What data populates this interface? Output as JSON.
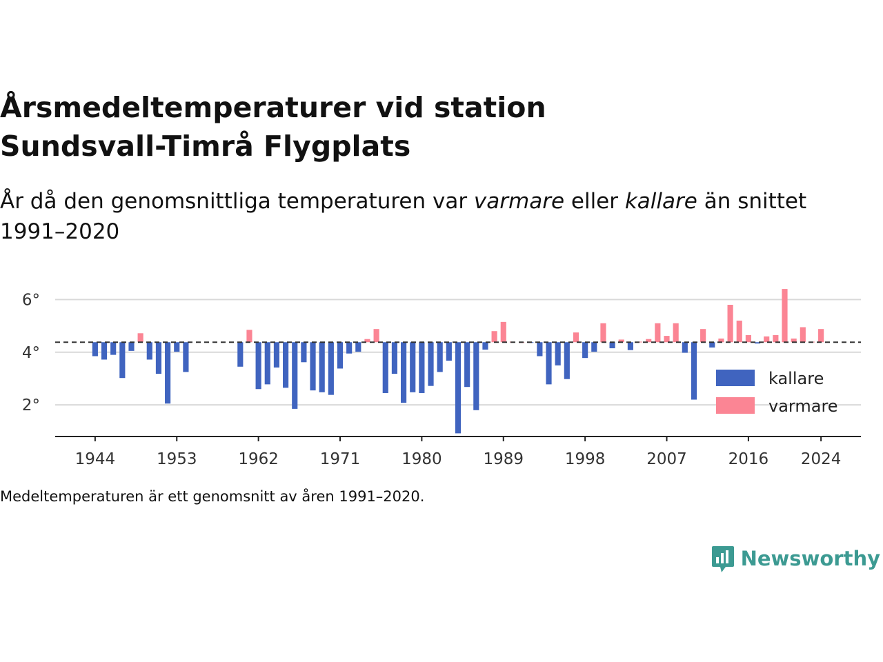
{
  "title": "Årsmedeltemperaturer vid station Sundsvall-Timrå Flygplats",
  "subtitle": {
    "part1": "År då den genomsnittliga temperaturen var ",
    "warm_word": "varmare",
    "part2": " eller ",
    "cold_word": "kallare",
    "part3": " än snittet 1991–2020"
  },
  "note": "Medeltemperaturen är ett genomsnitt av åren 1991–2020.",
  "brand": "Newsworthy",
  "colors": {
    "colder": "#4064bf",
    "warmer": "#fb8594",
    "accent": "#3c9a92"
  },
  "chart_data": {
    "type": "bar",
    "baseline": 4.38,
    "ylim": [
      0.8,
      6.9
    ],
    "xlim": [
      1939.6,
      2028.4
    ],
    "yticks": [
      2,
      4,
      6
    ],
    "ytick_labels": [
      "2°",
      "4°",
      "6°"
    ],
    "xticks": [
      1944,
      1953,
      1962,
      1971,
      1980,
      1989,
      1998,
      2007,
      2016,
      2024
    ],
    "xtick_labels": [
      "1944",
      "1953",
      "1962",
      "1971",
      "1980",
      "1989",
      "1998",
      "2007",
      "2016",
      "2024"
    ],
    "legend": {
      "position": "bottom-right",
      "colder_label": "kallare",
      "warmer_label": "varmare"
    },
    "x": [
      1944,
      1945,
      1946,
      1947,
      1948,
      1949,
      1950,
      1951,
      1952,
      1953,
      1954,
      1960,
      1961,
      1962,
      1963,
      1964,
      1965,
      1966,
      1967,
      1968,
      1969,
      1970,
      1971,
      1972,
      1973,
      1974,
      1975,
      1976,
      1977,
      1978,
      1979,
      1980,
      1981,
      1982,
      1983,
      1984,
      1985,
      1986,
      1987,
      1988,
      1989,
      1990,
      1991,
      1992,
      1993,
      1994,
      1995,
      1996,
      1997,
      1998,
      1999,
      2000,
      2001,
      2002,
      2003,
      2004,
      2005,
      2006,
      2007,
      2008,
      2009,
      2010,
      2011,
      2012,
      2013,
      2014,
      2015,
      2016,
      2017,
      2018,
      2019,
      2020,
      2021,
      2022,
      2023,
      2024
    ],
    "values": [
      3.85,
      3.72,
      3.9,
      3.02,
      4.05,
      4.72,
      3.72,
      3.18,
      2.05,
      4.02,
      3.25,
      3.45,
      4.85,
      2.6,
      2.78,
      3.42,
      2.65,
      1.85,
      3.62,
      2.55,
      2.48,
      2.38,
      3.38,
      3.95,
      4.02,
      4.5,
      4.88,
      2.45,
      3.18,
      2.08,
      2.48,
      2.45,
      2.72,
      3.25,
      3.68,
      0.92,
      2.68,
      1.8,
      4.1,
      4.8,
      5.15,
      4.4,
      4.38,
      4.36,
      3.85,
      2.78,
      3.5,
      2.98,
      4.75,
      3.78,
      4.02,
      5.1,
      4.15,
      4.48,
      4.08,
      4.4,
      4.5,
      5.1,
      4.62,
      5.1,
      3.98,
      2.2,
      4.88,
      4.18,
      4.52,
      5.8,
      5.2,
      4.65,
      4.33,
      4.6,
      4.65,
      6.4,
      4.52,
      4.95,
      4.4,
      4.88
    ]
  }
}
